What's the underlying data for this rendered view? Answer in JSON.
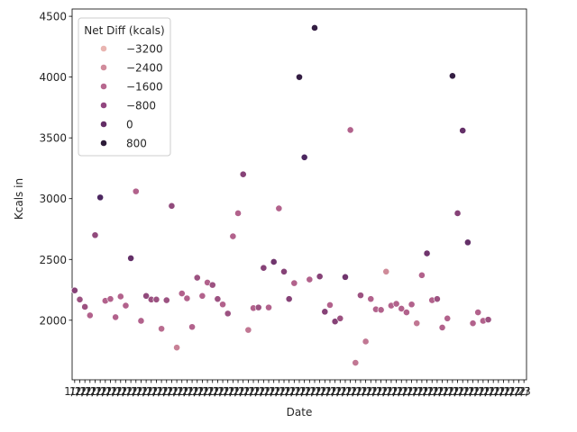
{
  "chart_data": {
    "type": "scatter",
    "xlabel": "Date",
    "ylabel": "Kcals in",
    "ylim": [
      1510,
      4560
    ],
    "yticks": [
      2000,
      2500,
      3000,
      3500,
      4000,
      4500
    ],
    "x_tick_labels_note": "overlapping unreadable date labels; last legible fragment",
    "x_tick_last_label": "23",
    "x_tick_count": 89,
    "legend": {
      "title": "Net Diff (kcals)",
      "placement": "top-left",
      "levels": [
        -3200,
        -2400,
        -1600,
        -800,
        0,
        800
      ],
      "level_labels": [
        "−3200",
        "−2400",
        "−1600",
        "−800",
        "0",
        "800"
      ],
      "level_colors": [
        "#e9b5b1",
        "#d18c9c",
        "#b7688f",
        "#92467f",
        "#642e66",
        "#2d1b38"
      ]
    },
    "hue_range": [
      -3600,
      1200
    ],
    "points": [
      {
        "x": 1,
        "y": 2245,
        "c": -400
      },
      {
        "x": 2,
        "y": 2170,
        "c": -800
      },
      {
        "x": 3,
        "y": 2110,
        "c": -800
      },
      {
        "x": 4,
        "y": 2040,
        "c": -1200
      },
      {
        "x": 5,
        "y": 2700,
        "c": -600
      },
      {
        "x": 6,
        "y": 3010,
        "c": 600
      },
      {
        "x": 7,
        "y": 2160,
        "c": -1200
      },
      {
        "x": 8,
        "y": 2175,
        "c": -1200
      },
      {
        "x": 9,
        "y": 2025,
        "c": -1200
      },
      {
        "x": 10,
        "y": 2195,
        "c": -1200
      },
      {
        "x": 11,
        "y": 2120,
        "c": -1200
      },
      {
        "x": 12,
        "y": 2510,
        "c": 200
      },
      {
        "x": 13,
        "y": 3060,
        "c": -1200
      },
      {
        "x": 14,
        "y": 1995,
        "c": -1200
      },
      {
        "x": 15,
        "y": 2200,
        "c": -600
      },
      {
        "x": 16,
        "y": 2170,
        "c": -800
      },
      {
        "x": 17,
        "y": 2170,
        "c": -800
      },
      {
        "x": 18,
        "y": 1930,
        "c": -1400
      },
      {
        "x": 19,
        "y": 2165,
        "c": -800
      },
      {
        "x": 20,
        "y": 2940,
        "c": -600
      },
      {
        "x": 21,
        "y": 1775,
        "c": -1800
      },
      {
        "x": 22,
        "y": 2220,
        "c": -1200
      },
      {
        "x": 23,
        "y": 2180,
        "c": -1200
      },
      {
        "x": 24,
        "y": 1945,
        "c": -1200
      },
      {
        "x": 25,
        "y": 2350,
        "c": -800
      },
      {
        "x": 26,
        "y": 2200,
        "c": -1200
      },
      {
        "x": 27,
        "y": 2310,
        "c": -1200
      },
      {
        "x": 28,
        "y": 2290,
        "c": -800
      },
      {
        "x": 29,
        "y": 2175,
        "c": -800
      },
      {
        "x": 30,
        "y": 2130,
        "c": -1200
      },
      {
        "x": 31,
        "y": 2055,
        "c": -800
      },
      {
        "x": 32,
        "y": 2690,
        "c": -1200
      },
      {
        "x": 33,
        "y": 2880,
        "c": -1200
      },
      {
        "x": 34,
        "y": 3200,
        "c": -400
      },
      {
        "x": 35,
        "y": 1920,
        "c": -1600
      },
      {
        "x": 36,
        "y": 2100,
        "c": -1200
      },
      {
        "x": 37,
        "y": 2105,
        "c": -800
      },
      {
        "x": 38,
        "y": 2430,
        "c": -400
      },
      {
        "x": 39,
        "y": 2105,
        "c": -1200
      },
      {
        "x": 40,
        "y": 2480,
        "c": 0
      },
      {
        "x": 41,
        "y": 2920,
        "c": -1200
      },
      {
        "x": 42,
        "y": 2400,
        "c": -400
      },
      {
        "x": 43,
        "y": 2175,
        "c": -400
      },
      {
        "x": 44,
        "y": 2305,
        "c": -1200
      },
      {
        "x": 45,
        "y": 4000,
        "c": 1000
      },
      {
        "x": 46,
        "y": 3340,
        "c": 600
      },
      {
        "x": 47,
        "y": 2335,
        "c": -1200
      },
      {
        "x": 48,
        "y": 4405,
        "c": 1000
      },
      {
        "x": 49,
        "y": 2360,
        "c": -400
      },
      {
        "x": 50,
        "y": 2070,
        "c": -400
      },
      {
        "x": 51,
        "y": 2125,
        "c": -1200
      },
      {
        "x": 52,
        "y": 1990,
        "c": -400
      },
      {
        "x": 53,
        "y": 2015,
        "c": -800
      },
      {
        "x": 54,
        "y": 2355,
        "c": 0
      },
      {
        "x": 55,
        "y": 3565,
        "c": -1200
      },
      {
        "x": 56,
        "y": 1650,
        "c": -1600
      },
      {
        "x": 57,
        "y": 2205,
        "c": -800
      },
      {
        "x": 58,
        "y": 1825,
        "c": -1600
      },
      {
        "x": 59,
        "y": 2175,
        "c": -1200
      },
      {
        "x": 60,
        "y": 2090,
        "c": -1200
      },
      {
        "x": 61,
        "y": 2085,
        "c": -1200
      },
      {
        "x": 62,
        "y": 2400,
        "c": -2000
      },
      {
        "x": 63,
        "y": 2120,
        "c": -1200
      },
      {
        "x": 64,
        "y": 2135,
        "c": -1200
      },
      {
        "x": 65,
        "y": 2095,
        "c": -1200
      },
      {
        "x": 66,
        "y": 2065,
        "c": -1200
      },
      {
        "x": 67,
        "y": 2130,
        "c": -1200
      },
      {
        "x": 68,
        "y": 1975,
        "c": -1600
      },
      {
        "x": 69,
        "y": 2370,
        "c": -1200
      },
      {
        "x": 70,
        "y": 2550,
        "c": 0
      },
      {
        "x": 71,
        "y": 2165,
        "c": -1200
      },
      {
        "x": 72,
        "y": 2175,
        "c": -800
      },
      {
        "x": 73,
        "y": 1940,
        "c": -1200
      },
      {
        "x": 74,
        "y": 2015,
        "c": -1200
      },
      {
        "x": 75,
        "y": 4010,
        "c": 1000
      },
      {
        "x": 76,
        "y": 2880,
        "c": -400
      },
      {
        "x": 77,
        "y": 3560,
        "c": 200
      },
      {
        "x": 78,
        "y": 2640,
        "c": 200
      },
      {
        "x": 79,
        "y": 1975,
        "c": -1200
      },
      {
        "x": 80,
        "y": 2065,
        "c": -1200
      },
      {
        "x": 81,
        "y": 1995,
        "c": -1200
      },
      {
        "x": 82,
        "y": 2005,
        "c": -800
      }
    ]
  }
}
